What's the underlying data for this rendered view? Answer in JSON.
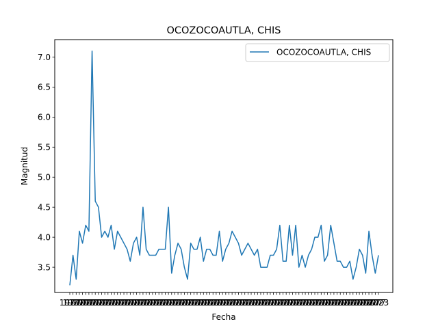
{
  "chart_data": {
    "type": "line",
    "title": "OCOZOCOAUTLA, CHIS",
    "xlabel": "Fecha",
    "ylabel": "Magnitud",
    "ylim": [
      3.08,
      7.29
    ],
    "yticks": [
      "3.5",
      "4.0",
      "4.5",
      "5.0",
      "5.5",
      "6.0",
      "6.5",
      "7.0"
    ],
    "ytick_values": [
      3.5,
      4.0,
      4.5,
      5.0,
      5.5,
      6.0,
      6.5,
      7.0
    ],
    "x_tick_overlap_text": "1977",
    "x_tick_tail_text": "2023",
    "legend": {
      "placement": "upper right",
      "label": "OCOZOCOAUTLA, CHIS"
    },
    "series": [
      {
        "name": "OCOZOCOAUTLA, CHIS",
        "color": "#1f77b4",
        "values": [
          3.2,
          3.7,
          3.3,
          4.1,
          3.9,
          4.2,
          4.1,
          7.1,
          4.6,
          4.5,
          4.0,
          4.1,
          4.0,
          4.2,
          3.8,
          4.1,
          4.0,
          3.9,
          3.8,
          3.6,
          3.9,
          4.0,
          3.7,
          4.5,
          3.8,
          3.7,
          3.7,
          3.7,
          3.8,
          3.8,
          3.8,
          4.5,
          3.4,
          3.7,
          3.9,
          3.8,
          3.5,
          3.3,
          3.9,
          3.8,
          3.8,
          4.0,
          3.6,
          3.8,
          3.8,
          3.7,
          3.7,
          4.1,
          3.6,
          3.8,
          3.9,
          4.1,
          4.0,
          3.9,
          3.7,
          3.8,
          3.9,
          3.8,
          3.7,
          3.8,
          3.5,
          3.5,
          3.5,
          3.7,
          3.7,
          3.8,
          4.2,
          3.6,
          3.6,
          4.2,
          3.7,
          4.2,
          3.5,
          3.7,
          3.5,
          3.7,
          3.8,
          4.0,
          4.0,
          4.2,
          3.6,
          3.7,
          4.2,
          3.9,
          3.6,
          3.6,
          3.5,
          3.5,
          3.6,
          3.3,
          3.5,
          3.8,
          3.7,
          3.4,
          4.1,
          3.7,
          3.4,
          3.7
        ]
      }
    ]
  },
  "colors": {
    "series": "#1f77b4",
    "axes": "#000000",
    "legend_border": "#cccccc"
  }
}
